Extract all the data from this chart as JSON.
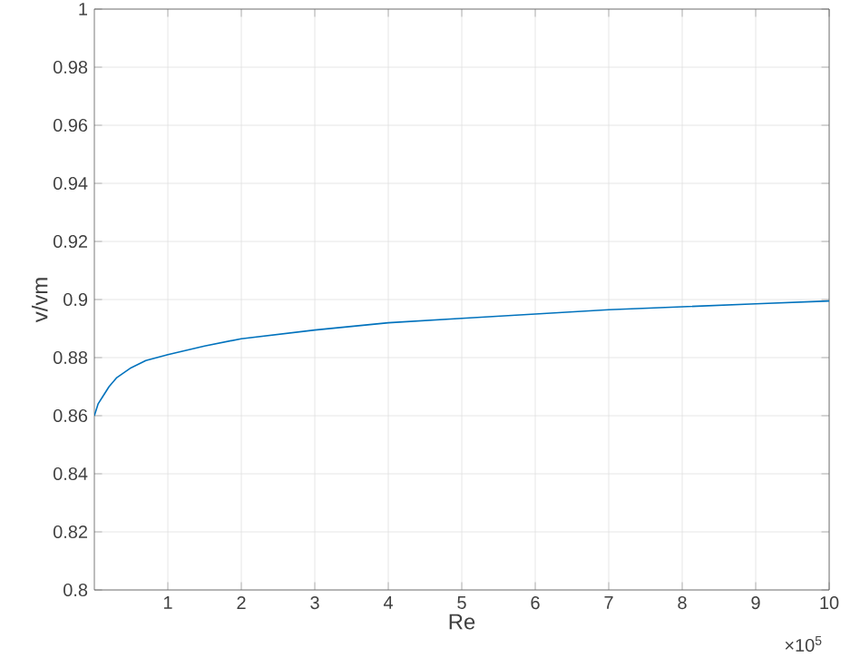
{
  "chart_data": {
    "type": "line",
    "xlabel": "Re",
    "ylabel": "v/vm",
    "annotations": [
      "×10$^{5}$"
    ],
    "x": [
      0.0,
      0.05,
      0.1,
      0.2,
      0.3,
      0.5,
      0.7,
      1,
      1.5,
      2,
      3,
      4,
      5,
      6,
      7,
      8,
      9,
      10
    ],
    "series": [
      {
        "color": "#0072bd",
        "values": [
          0.86,
          0.864,
          0.866,
          0.87,
          0.873,
          0.8765,
          0.879,
          0.881,
          0.884,
          0.8865,
          0.8895,
          0.892,
          0.8935,
          0.895,
          0.8965,
          0.8975,
          0.8985,
          0.8995
        ]
      }
    ],
    "xlim": [
      0,
      10
    ],
    "ylim": [
      0.8,
      1
    ],
    "xticks": [
      1,
      2,
      3,
      4,
      5,
      6,
      7,
      8,
      9,
      10
    ],
    "yticks": [
      0.8,
      0.82,
      0.84,
      0.86,
      0.88,
      0.9,
      0.92,
      0.94,
      0.96,
      0.98,
      1
    ],
    "grid": true,
    "marker": "none",
    "line_style": "solid"
  }
}
